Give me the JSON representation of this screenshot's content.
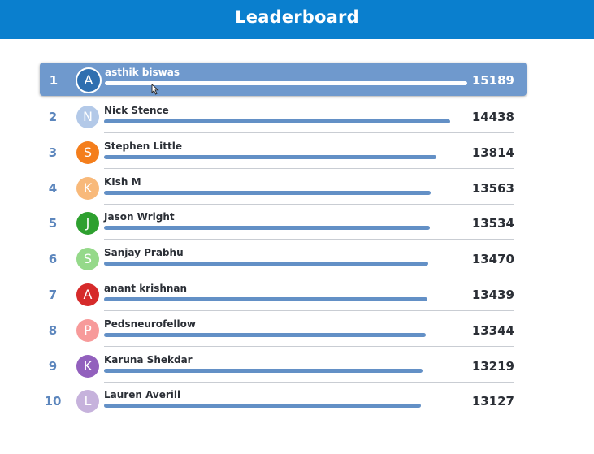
{
  "header": {
    "title": "Leaderboard",
    "color": "#0a7fce"
  },
  "leaderboard": {
    "max_score": 15189,
    "entries": [
      {
        "rank": "1",
        "initial": "A",
        "name": "asthik biswas",
        "score": "15189",
        "avatar_color": "#2f6fb0",
        "highlighted": true
      },
      {
        "rank": "2",
        "initial": "N",
        "name": "Nick Stence",
        "score": "14438",
        "avatar_color": "#b3c9e8"
      },
      {
        "rank": "3",
        "initial": "S",
        "name": "Stephen Little",
        "score": "13814",
        "avatar_color": "#f47e1c"
      },
      {
        "rank": "4",
        "initial": "K",
        "name": "KIsh M",
        "score": "13563",
        "avatar_color": "#f8b97a"
      },
      {
        "rank": "5",
        "initial": "J",
        "name": "Jason Wright",
        "score": "13534",
        "avatar_color": "#2ea02f"
      },
      {
        "rank": "6",
        "initial": "S",
        "name": "Sanjay Prabhu",
        "score": "13470",
        "avatar_color": "#95d98a"
      },
      {
        "rank": "7",
        "initial": "A",
        "name": "anant krishnan",
        "score": "13439",
        "avatar_color": "#d62a2a"
      },
      {
        "rank": "8",
        "initial": "P",
        "name": "Pedsneurofellow",
        "score": "13344",
        "avatar_color": "#f79a9a"
      },
      {
        "rank": "9",
        "initial": "K",
        "name": "Karuna Shekdar",
        "score": "13219",
        "avatar_color": "#9260bd"
      },
      {
        "rank": "10",
        "initial": "L",
        "name": "Lauren Averill",
        "score": "13127",
        "avatar_color": "#c6b2dc"
      }
    ]
  }
}
